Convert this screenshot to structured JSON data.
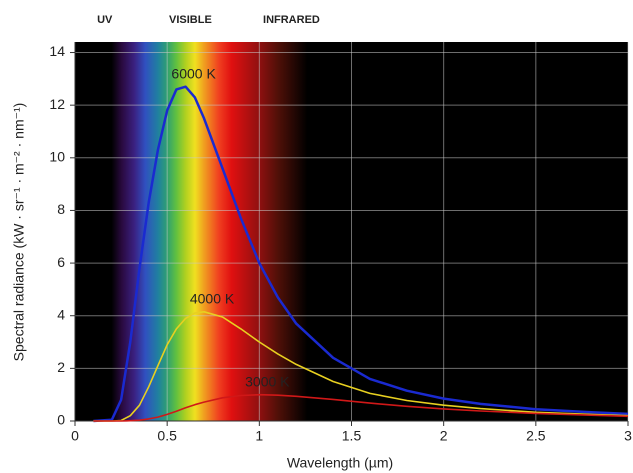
{
  "chart_data": {
    "type": "line",
    "xlabel": "Wavelength (µm)",
    "ylabel": "Spectral radiance (kW · sr⁻¹ · m⁻² · nm⁻¹)",
    "xlim": [
      0,
      3
    ],
    "ylim": [
      0,
      14.4
    ],
    "xticks": [
      0,
      0.5,
      1,
      1.5,
      2,
      2.5,
      3
    ],
    "yticks": [
      0,
      2,
      4,
      6,
      8,
      10,
      12,
      14
    ],
    "grid": true,
    "regions": [
      {
        "label": "UV",
        "x": 0.12
      },
      {
        "label": "VISIBLE",
        "x": 0.51
      },
      {
        "label": "INFRARED",
        "x": 1.02
      }
    ],
    "x": [
      0.1,
      0.2,
      0.25,
      0.3,
      0.35,
      0.4,
      0.45,
      0.5,
      0.55,
      0.6,
      0.65,
      0.7,
      0.8,
      0.9,
      1.0,
      1.1,
      1.2,
      1.4,
      1.6,
      1.8,
      2.0,
      2.2,
      2.5,
      2.8,
      3.0
    ],
    "series": [
      {
        "name": "6000 K",
        "color": "#1a2ad0",
        "values": [
          0,
          0.05,
          0.8,
          3,
          5.8,
          8.3,
          10.3,
          11.8,
          12.6,
          12.7,
          12.3,
          11.5,
          9.6,
          7.7,
          6.0,
          4.7,
          3.7,
          2.4,
          1.6,
          1.15,
          0.85,
          0.65,
          0.45,
          0.33,
          0.27
        ]
      },
      {
        "name": "4000 K",
        "color": "#e8d020",
        "values": [
          0,
          0,
          0.02,
          0.2,
          0.6,
          1.3,
          2.1,
          2.9,
          3.5,
          3.9,
          4.1,
          4.15,
          3.95,
          3.5,
          3.0,
          2.55,
          2.15,
          1.5,
          1.05,
          0.78,
          0.6,
          0.47,
          0.33,
          0.25,
          0.2
        ]
      },
      {
        "name": "3000 K",
        "color": "#d01818",
        "values": [
          0,
          0,
          0,
          0.01,
          0.03,
          0.08,
          0.15,
          0.25,
          0.37,
          0.5,
          0.62,
          0.72,
          0.88,
          0.97,
          1.0,
          0.98,
          0.94,
          0.82,
          0.68,
          0.56,
          0.46,
          0.38,
          0.29,
          0.22,
          0.18
        ]
      }
    ]
  }
}
